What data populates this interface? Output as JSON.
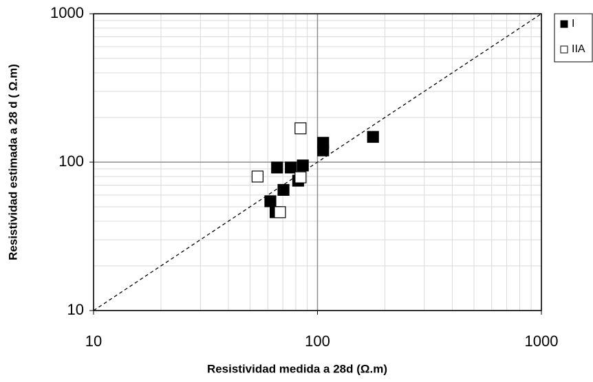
{
  "chart_data": {
    "type": "scatter",
    "xlabel": "Resistividad medida a 28d (Ω.m)",
    "ylabel": "Resistividad estimada a 28 d ( Ω.m)",
    "xscale": "log",
    "yscale": "log",
    "xlim": [
      10,
      1000
    ],
    "ylim": [
      10,
      1000
    ],
    "xticks": [
      10,
      100,
      1000
    ],
    "yticks": [
      10,
      100,
      1000
    ],
    "grid": true,
    "minor_grid": true,
    "identity_line": true,
    "legend": "outside-right",
    "series": [
      {
        "name": "I",
        "color": "#000000",
        "fill": "#000000",
        "x": [
          66,
          76,
          86,
          82,
          70.5,
          61.6,
          65,
          106,
          106,
          177
        ],
        "values": [
          92,
          92,
          95,
          75,
          65,
          54.5,
          46,
          135,
          120,
          148
        ]
      },
      {
        "name": "IIA",
        "color": "#000000",
        "fill": "#ffffff",
        "x": [
          54,
          84,
          84,
          68
        ],
        "values": [
          80,
          169,
          79,
          46
        ]
      }
    ]
  }
}
